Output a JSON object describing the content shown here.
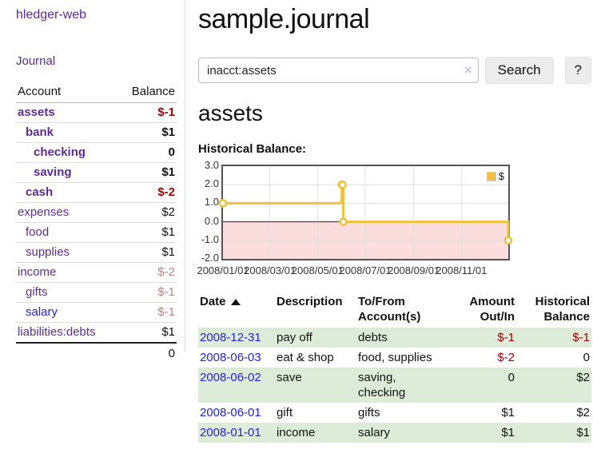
{
  "brand": "hledger-web",
  "nav": {
    "journal_label": "Journal"
  },
  "sidebar": {
    "col_account": "Account",
    "col_balance": "Balance",
    "accounts": [
      {
        "name": "assets",
        "balance": "$-1",
        "indent": 0,
        "bold": true,
        "amount_class": "neg-strong",
        "link": "visited"
      },
      {
        "name": "bank",
        "balance": "$1",
        "indent": 1,
        "bold": true,
        "amount_class": "pos",
        "link": "visited"
      },
      {
        "name": "checking",
        "balance": "0",
        "indent": 2,
        "bold": true,
        "amount_class": "pos",
        "link": "visited"
      },
      {
        "name": "saving",
        "balance": "$1",
        "indent": 2,
        "bold": true,
        "amount_class": "pos",
        "link": "visited"
      },
      {
        "name": "cash",
        "balance": "$-2",
        "indent": 1,
        "bold": true,
        "amount_class": "neg-strong",
        "link": "visited"
      },
      {
        "name": "expenses",
        "balance": "$2",
        "indent": 0,
        "bold": false,
        "amount_class": "pos",
        "link": "visited"
      },
      {
        "name": "food",
        "balance": "$1",
        "indent": 1,
        "bold": false,
        "amount_class": "pos",
        "link": "visited"
      },
      {
        "name": "supplies",
        "balance": "$1",
        "indent": 1,
        "bold": false,
        "amount_class": "pos",
        "link": "visited"
      },
      {
        "name": "income",
        "balance": "$-2",
        "indent": 0,
        "bold": false,
        "amount_class": "neg-soft",
        "link": "visited"
      },
      {
        "name": "gifts",
        "balance": "$-1",
        "indent": 1,
        "bold": false,
        "amount_class": "neg-soft",
        "link": "visited"
      },
      {
        "name": "salary",
        "balance": "$-1",
        "indent": 1,
        "bold": false,
        "amount_class": "neg-soft",
        "link": "unvisited"
      },
      {
        "name": "liabilities:debts",
        "balance": "$1",
        "indent": 0,
        "bold": false,
        "amount_class": "pos",
        "link": "visited"
      }
    ],
    "total": "0"
  },
  "main": {
    "title": "sample.journal",
    "search": {
      "value": "inacct:assets",
      "clear_icon": "×",
      "search_button": "Search",
      "help_button": "?"
    },
    "account_heading": "assets",
    "chart_title": "Historical Balance:"
  },
  "chart_data": {
    "type": "line",
    "step": true,
    "title": "Historical Balance",
    "series": [
      {
        "name": "$",
        "color": "#EDC240",
        "points": [
          [
            "2008-01-01",
            1
          ],
          [
            "2008-06-01",
            2
          ],
          [
            "2008-06-02",
            2
          ],
          [
            "2008-06-03",
            0
          ],
          [
            "2008-12-31",
            -1
          ]
        ]
      }
    ],
    "ylim": [
      -2,
      3
    ],
    "y_ticks": [
      "3.0",
      "2.0",
      "1.0",
      "0.0",
      "-1.0",
      "-2.0"
    ],
    "y_tick_values": [
      3,
      2,
      1,
      0,
      -1,
      -2
    ],
    "x_ticks": [
      "2008/01/01",
      "2008/03/01",
      "2008/05/01",
      "2008/07/01",
      "2008/09/01",
      "2008/11/01"
    ],
    "x_tick_dates": [
      "2008-01-01",
      "2008-03-01",
      "2008-05-01",
      "2008-07-01",
      "2008-09-01",
      "2008-11-01"
    ],
    "x_range": [
      "2008-01-01",
      "2008-12-31"
    ],
    "grid": true,
    "legend": {
      "label": "$",
      "position": "top-right"
    },
    "negative_zone_fill": "#fbdddd",
    "zero_line_color": "#8b0000",
    "grid_color": "#e0e0e0",
    "marker_fill": "#ffffff"
  },
  "register": {
    "headers": [
      {
        "lines": [
          "Date"
        ],
        "align": "left",
        "sorted": "asc"
      },
      {
        "lines": [
          "Description"
        ],
        "align": "left"
      },
      {
        "lines": [
          "To/From",
          "Account(s)"
        ],
        "align": "left"
      },
      {
        "lines": [
          "Amount",
          "Out/In"
        ],
        "align": "right"
      },
      {
        "lines": [
          "Historical",
          "Balance"
        ],
        "align": "right"
      }
    ],
    "rows": [
      {
        "date": "2008-12-31",
        "description": "pay off",
        "accounts_lines": [
          "debts"
        ],
        "amount": "$-1",
        "amount_negative": true,
        "balance": "$-1",
        "balance_negative": true
      },
      {
        "date": "2008-06-03",
        "description": "eat & shop",
        "accounts_lines": [
          "food, supplies"
        ],
        "amount": "$-2",
        "amount_negative": true,
        "balance": "0",
        "balance_negative": false
      },
      {
        "date": "2008-06-02",
        "description": "save",
        "accounts_lines": [
          "saving,",
          "checking"
        ],
        "amount": "0",
        "amount_negative": false,
        "balance": "$2",
        "balance_negative": false
      },
      {
        "date": "2008-06-01",
        "description": "gift",
        "accounts_lines": [
          "gifts"
        ],
        "amount": "$1",
        "amount_negative": false,
        "balance": "$2",
        "balance_negative": false
      },
      {
        "date": "2008-01-01",
        "description": "income",
        "accounts_lines": [
          "salary"
        ],
        "amount": "$1",
        "amount_negative": false,
        "balance": "$1",
        "balance_negative": false
      }
    ]
  },
  "colors": {
    "link_visited": "#5c2d91",
    "link_unvisited": "#2323cc",
    "negative_strong": "#990000",
    "negative_soft": "#c47e7e",
    "row_stripe_green": "#ddecd9",
    "series_gold": "#EDC240",
    "chart_border": "#545454"
  }
}
